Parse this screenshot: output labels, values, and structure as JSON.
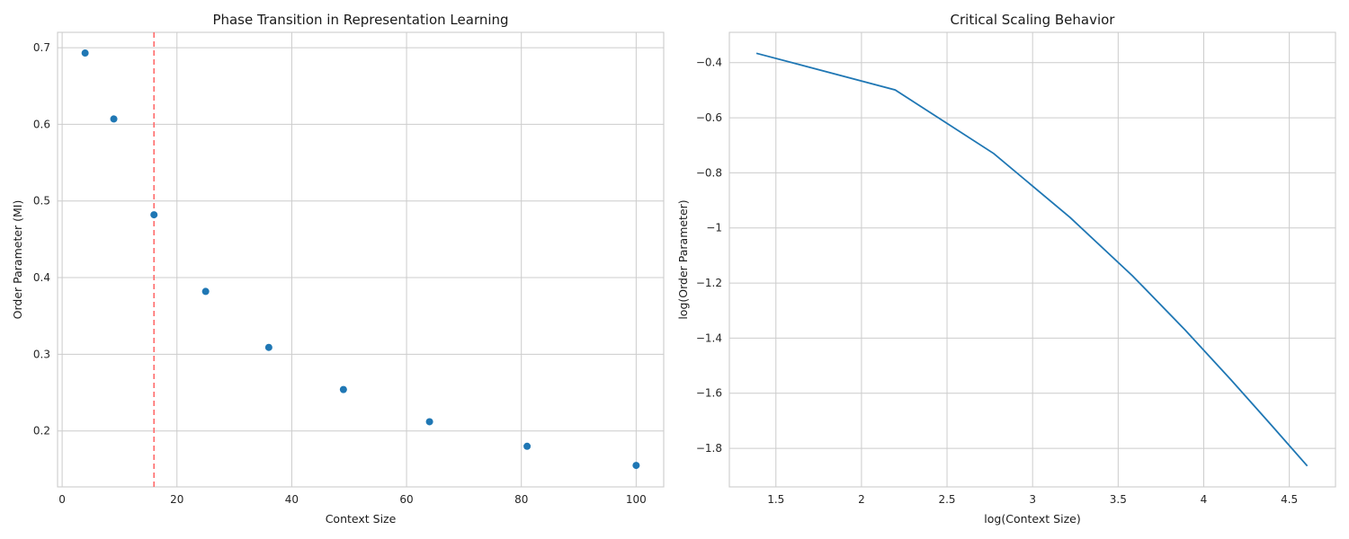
{
  "chart_data": [
    {
      "type": "scatter",
      "title": "Phase Transition in Representation Learning",
      "xlabel": "Context Size",
      "ylabel": "Order Parameter (MI)",
      "xlim": [
        -0.8,
        104.8
      ],
      "ylim": [
        0.127,
        0.72
      ],
      "xticks": [
        0,
        20,
        40,
        60,
        80,
        100
      ],
      "yticks": [
        0.2,
        0.3,
        0.4,
        0.5,
        0.6,
        0.7
      ],
      "grid": true,
      "series": [
        {
          "color": "#1f77b4",
          "x": [
            4,
            9,
            16,
            25,
            36,
            49,
            64,
            81,
            100
          ],
          "y": [
            0.693,
            0.607,
            0.482,
            0.382,
            0.309,
            0.254,
            0.212,
            0.18,
            0.155
          ]
        }
      ],
      "vlines": [
        {
          "x": 16,
          "color": "#ff6b6b",
          "style": "dashed"
        }
      ]
    },
    {
      "type": "line",
      "title": "Critical Scaling Behavior",
      "xlabel": "log(Context Size)",
      "ylabel": "log(Order Parameter)",
      "xlim": [
        1.228,
        4.77
      ],
      "ylim": [
        -1.94,
        -0.29
      ],
      "xticks": [
        1.5,
        2.0,
        2.5,
        3.0,
        3.5,
        4.0,
        4.5
      ],
      "yticks": [
        -0.4,
        -0.6,
        -0.8,
        -1.0,
        -1.2,
        -1.4,
        -1.6,
        -1.8
      ],
      "grid": true,
      "series": [
        {
          "color": "#1f77b4",
          "x": [
            1.386,
            2.197,
            2.773,
            3.219,
            3.584,
            3.892,
            4.159,
            4.394,
            4.605
          ],
          "y": [
            -0.366,
            -0.499,
            -0.73,
            -0.962,
            -1.174,
            -1.371,
            -1.551,
            -1.715,
            -1.864
          ]
        }
      ]
    }
  ]
}
